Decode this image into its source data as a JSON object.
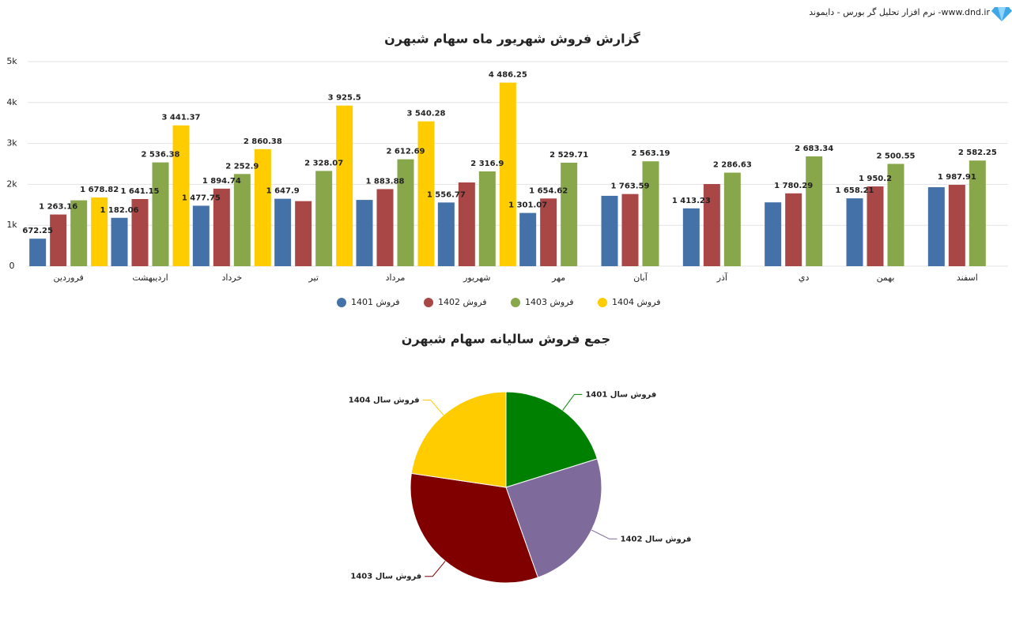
{
  "header": {
    "text": "نرم افزار تحلیل گر بورس - دایموند -www.dnd.ir"
  },
  "chart_data": [
    {
      "type": "bar",
      "title": "گزارش فروش شهریور ماه سهام شبهرن",
      "categories": [
        "فروردین",
        "اردیبهشت",
        "خرداد",
        "تیر",
        "مرداد",
        "شهریور",
        "مهر",
        "آبان",
        "آذر",
        "دي",
        "بهمن",
        "اسفند"
      ],
      "series": [
        {
          "name": "فروش 1401",
          "color": "#4472a8",
          "values": [
            672.25,
            1182.06,
            1477.75,
            1647.9,
            1620,
            1556.77,
            1301.07,
            1720,
            1413.23,
            1560,
            1658.21,
            1930
          ],
          "value_labels": [
            "672.25",
            "1 182.06",
            "1 477.75",
            "1 647.9",
            null,
            "1 556.77",
            "1 301.07",
            null,
            "1 413.23",
            null,
            "1 658.21",
            null
          ]
        },
        {
          "name": "فروش 1402",
          "color": "#a94646",
          "values": [
            1263.16,
            1641.15,
            1894.74,
            1590,
            1883.88,
            2046,
            1654.62,
            1763.59,
            2008,
            1780.29,
            1950.2,
            1987.91
          ],
          "value_labels": [
            "1 263.16",
            "1 641.15",
            "1 894.74",
            null,
            "1 883.88",
            null,
            "1 654.62",
            "1 763.59",
            null,
            "1 780.29",
            "1 950.2",
            "1 987.91"
          ]
        },
        {
          "name": "فروش 1403",
          "color": "#88a74a",
          "values": [
            1610,
            2536.38,
            2252.9,
            2328.07,
            2612.69,
            2316.9,
            2529.71,
            2563.19,
            2286.63,
            2683.34,
            2500.55,
            2582.25
          ],
          "value_labels": [
            null,
            "2 536.38",
            "2 252.9",
            "2 328.07",
            "2 612.69",
            "2 316.9",
            "2 529.71",
            "2 563.19",
            "2 286.63",
            "2 683.34",
            "2 500.55",
            "2 582.25"
          ]
        },
        {
          "name": "فروش 1404",
          "color": "#ffcc00",
          "values": [
            1678.82,
            3441.37,
            2860.38,
            3925.5,
            3540.28,
            4486.25,
            null,
            null,
            null,
            null,
            null,
            null
          ],
          "value_labels": [
            "1 678.82",
            "3 441.37",
            "2 860.38",
            "3 925.5",
            "3 540.28",
            "4 486.25",
            null,
            null,
            null,
            null,
            null,
            null
          ]
        }
      ],
      "ylim": [
        0,
        5000
      ],
      "yticks": [
        0,
        {
          "value": 1000,
          "label": "1k"
        },
        {
          "value": 2000,
          "label": "2k"
        },
        {
          "value": 3000,
          "label": "3k"
        },
        {
          "value": 4000,
          "label": "4k"
        },
        {
          "value": 5000,
          "label": "5k"
        }
      ],
      "grid": true,
      "legend": "bottom"
    },
    {
      "type": "pie",
      "title": "جمع فروش سالیانه سهام شبهرن",
      "categories": [
        "فروش سال 1401",
        "فروش سال 1402",
        "فروش سال 1403",
        "فروش سال 1404"
      ],
      "values": [
        17740,
        21460,
        28800,
        19930
      ],
      "colors": [
        "#008000",
        "#7f6a9c",
        "#800000",
        "#ffcc00"
      ]
    }
  ]
}
